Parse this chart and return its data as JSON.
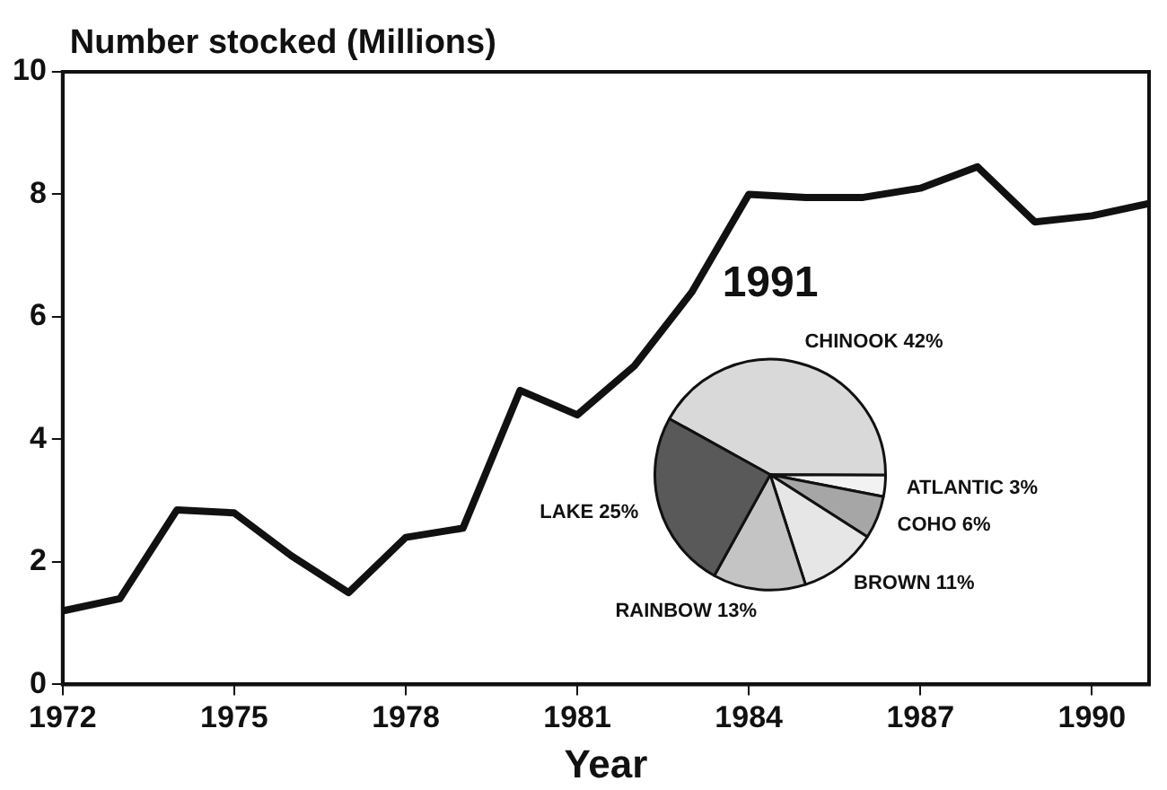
{
  "chart_data": [
    {
      "type": "line",
      "ylabel": "Number stocked (Millions)",
      "xlabel": "Year",
      "x": [
        1972,
        1973,
        1974,
        1975,
        1976,
        1977,
        1978,
        1979,
        1980,
        1981,
        1982,
        1983,
        1984,
        1985,
        1986,
        1987,
        1988,
        1989,
        1990,
        1991
      ],
      "series": [
        {
          "color": "#111111",
          "values": [
            1.2,
            1.4,
            2.85,
            2.8,
            2.1,
            1.5,
            2.4,
            2.55,
            4.8,
            4.4,
            5.2,
            6.4,
            8.0,
            7.95,
            7.95,
            8.1,
            8.45,
            7.55,
            7.65,
            7.85
          ]
        }
      ],
      "xlim": [
        1972,
        1991
      ],
      "xticks": [
        1972,
        1975,
        1978,
        1981,
        1984,
        1987,
        1990
      ],
      "ylim": [
        0,
        10
      ],
      "yticks": [
        0,
        2,
        4,
        6,
        8,
        10
      ],
      "grid": false,
      "legend": false,
      "marker": "none",
      "line_style": "solid"
    },
    {
      "type": "pie",
      "title": "1991",
      "categories": [
        "CHINOOK",
        "ATLANTIC",
        "COHO",
        "BROWN",
        "RAINBOW",
        "LAKE"
      ],
      "values": [
        42,
        3,
        6,
        11,
        13,
        25
      ],
      "value_labels": [
        "42%",
        "3%",
        "6%",
        "11%",
        "13%",
        "25%"
      ],
      "colors": [
        "#d9d9d9",
        "#f2f2f2",
        "#a6a6a6",
        "#e6e6e6",
        "#c4c4c4",
        "#595959"
      ],
      "legend": false
    }
  ]
}
